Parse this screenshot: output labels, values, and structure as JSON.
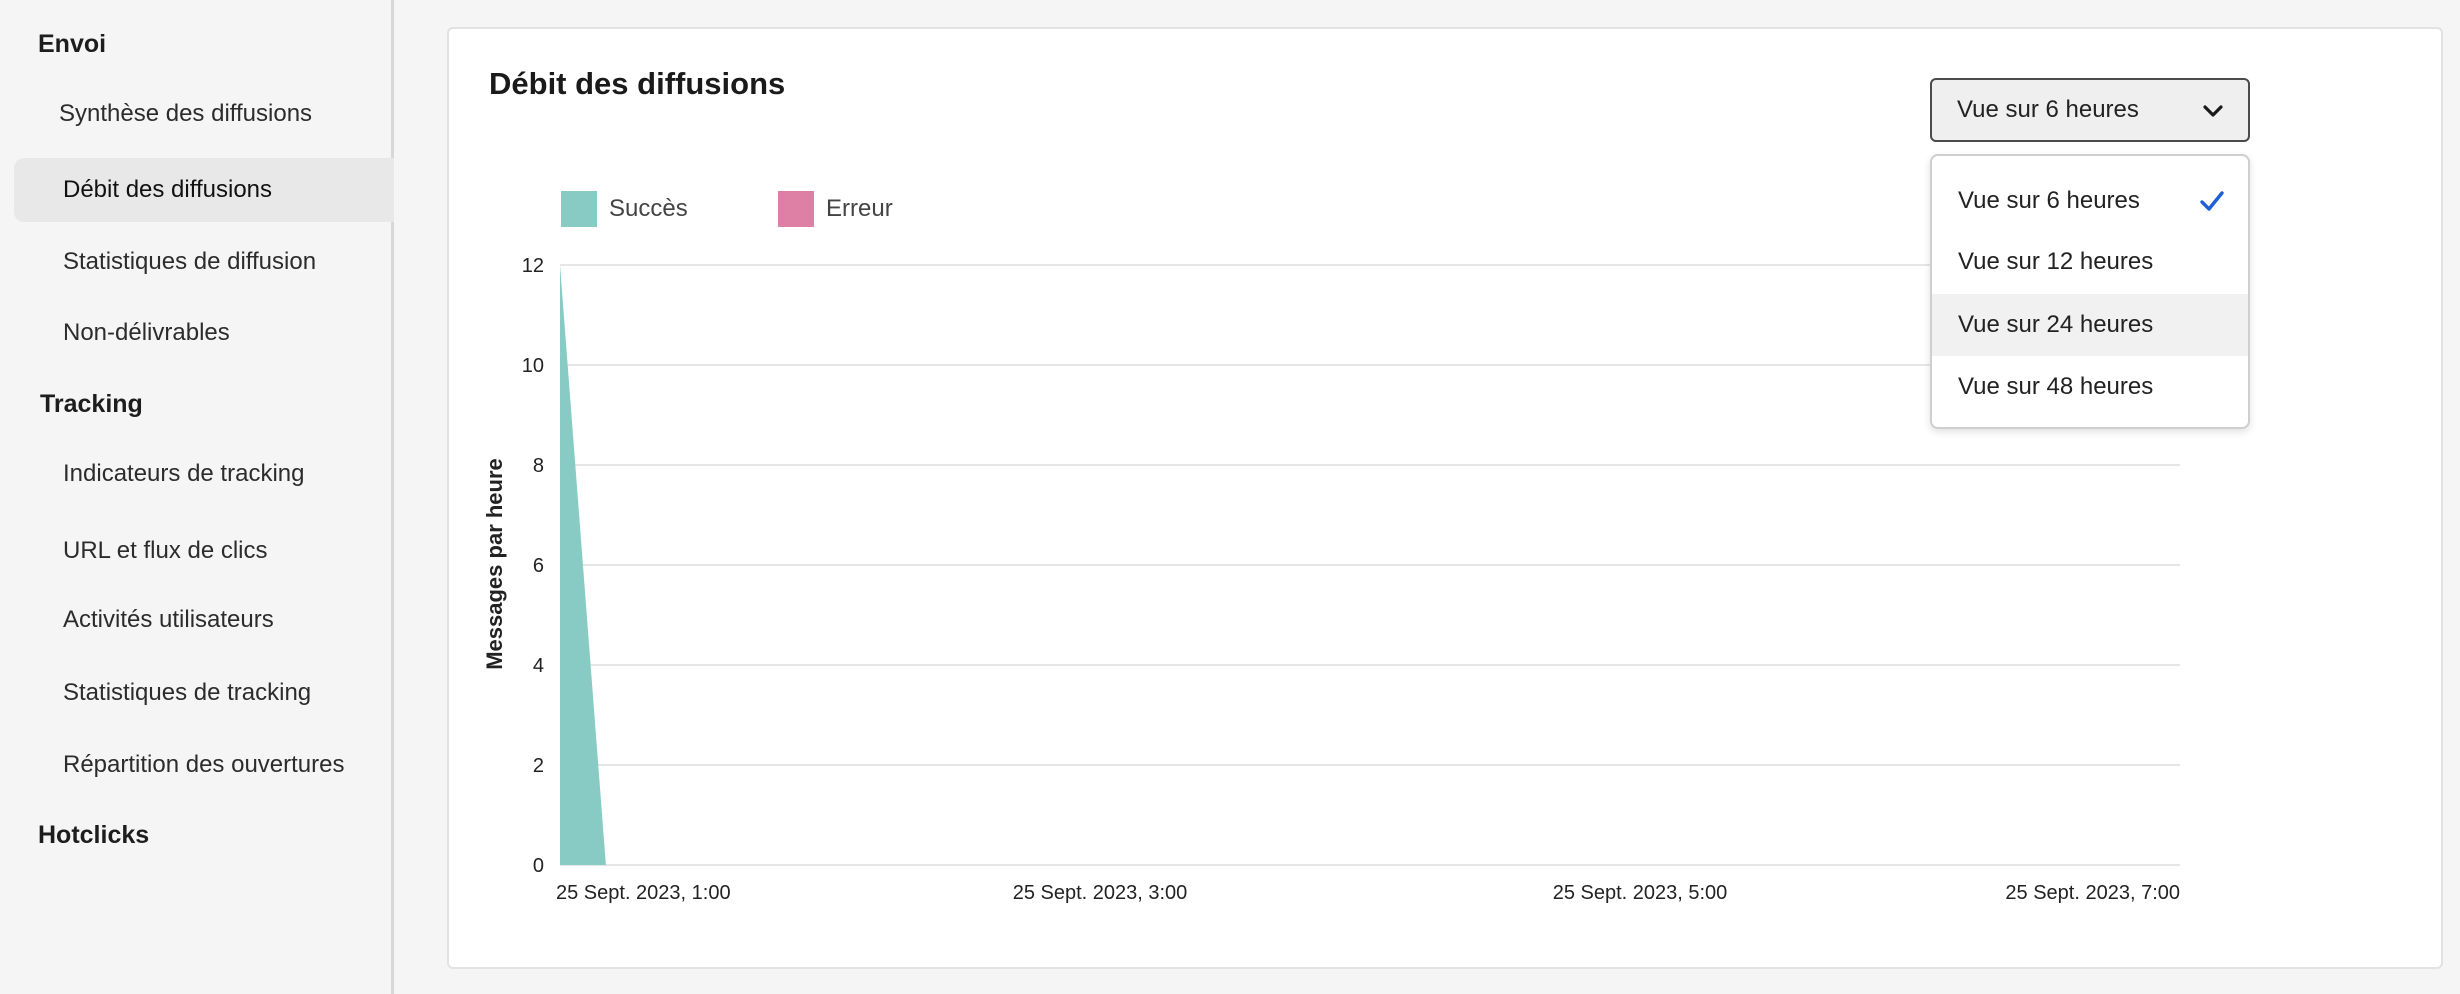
{
  "sidebar": {
    "sections": [
      {
        "title": "Envoi"
      },
      {
        "title": "Tracking"
      },
      {
        "title": "Hotclicks"
      }
    ],
    "items": [
      {
        "label": "Synthèse des diffusions"
      },
      {
        "label": "Débit des diffusions",
        "active": true
      },
      {
        "label": "Statistiques de diffusion"
      },
      {
        "label": "Non-délivrables"
      },
      {
        "label": "Indicateurs de tracking"
      },
      {
        "label": "URL et flux de clics"
      },
      {
        "label": "Activités utilisateurs"
      },
      {
        "label": "Statistiques de tracking"
      },
      {
        "label": "Répartition des ouvertures"
      }
    ]
  },
  "main": {
    "title": "Débit des diffusions",
    "dropdown": {
      "selected": "Vue sur 6 heures",
      "options": [
        "Vue sur 6 heures",
        "Vue sur 12 heures",
        "Vue sur 24 heures",
        "Vue sur 48 heures"
      ],
      "check_icon": "checkmark-icon",
      "chevron_icon": "chevron-down-icon"
    }
  },
  "colors": {
    "success": "#88cbc4",
    "error": "#de7fa6",
    "check": "#1f5fd6"
  },
  "chart_data": {
    "type": "area",
    "ylabel": "Messages par heure",
    "ylim": [
      0,
      12
    ],
    "yticks": [
      "0",
      "2",
      "4",
      "6",
      "8",
      "10",
      "12"
    ],
    "xticks": [
      {
        "label": "25 Sept. 2023, 1:00",
        "hour": 1.0
      },
      {
        "label": "25 Sept. 2023, 3:00",
        "hour": 3.0
      },
      {
        "label": "25 Sept. 2023, 5:00",
        "hour": 5.0
      },
      {
        "label": "25 Sept. 2023, 7:00",
        "hour": 7.0
      }
    ],
    "xlim": [
      1.0,
      7.0
    ],
    "grid": true,
    "legend": "top-left",
    "series": [
      {
        "name": "Succès",
        "points": [
          [
            1.0,
            12
          ],
          [
            1.17,
            0
          ]
        ]
      },
      {
        "name": "Erreur",
        "points": []
      }
    ]
  }
}
